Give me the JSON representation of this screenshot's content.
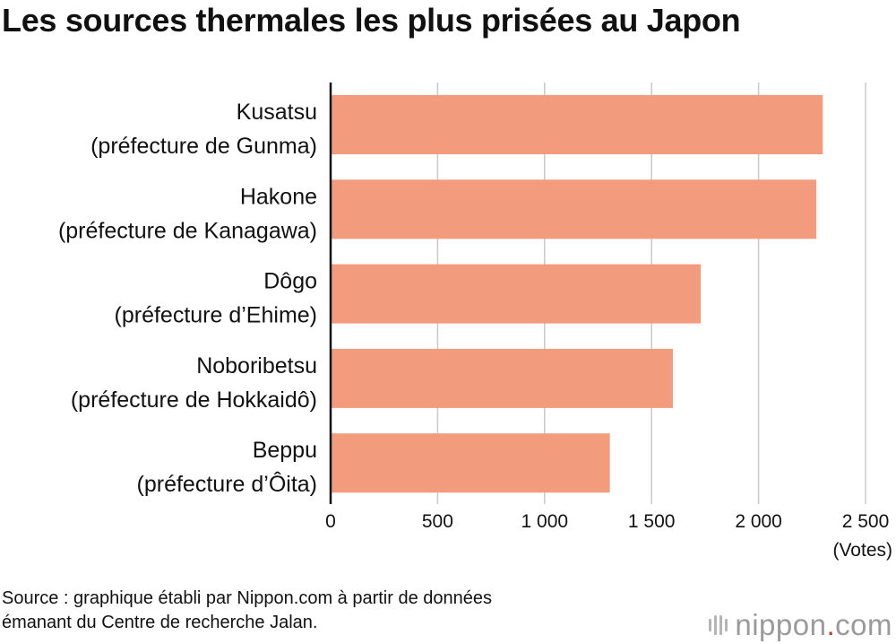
{
  "title": "Les sources thermales les plus prisées au Japon",
  "source": {
    "line1": "Source : graphique établi par Nippon.com à partir de données",
    "line2": "émanant du Centre de recherche Jalan."
  },
  "brand": {
    "name": "nippon",
    "dot": ".",
    "tld": "com",
    "logo_icon": "nippon-logo-bars-icon"
  },
  "colors": {
    "bar": "#F29C7D",
    "grid": "#C8C8C8",
    "axis": "#111111"
  },
  "chart_data": {
    "type": "bar",
    "orientation": "horizontal",
    "title": "Les sources thermales les plus prisées au Japon",
    "categories": [
      [
        "Kusatsu",
        "(préfecture de Gunma)"
      ],
      [
        "Hakone",
        "(préfecture de Kanagawa)"
      ],
      [
        "Dôgo",
        "(préfecture d’Ehime)"
      ],
      [
        "Noboribetsu",
        "(préfecture de Hokkaidô)"
      ],
      [
        "Beppu",
        "(préfecture d’Ôita)"
      ]
    ],
    "values": [
      2300,
      2270,
      1730,
      1600,
      1305
    ],
    "xlim": [
      0,
      2500
    ],
    "ticks": [
      0,
      500,
      1000,
      1500,
      2000,
      2500
    ],
    "tick_labels": [
      "0",
      "500",
      "1 000",
      "1 500",
      "2 000",
      "2 500"
    ],
    "xlabel": "(Votes)",
    "grid": true
  }
}
